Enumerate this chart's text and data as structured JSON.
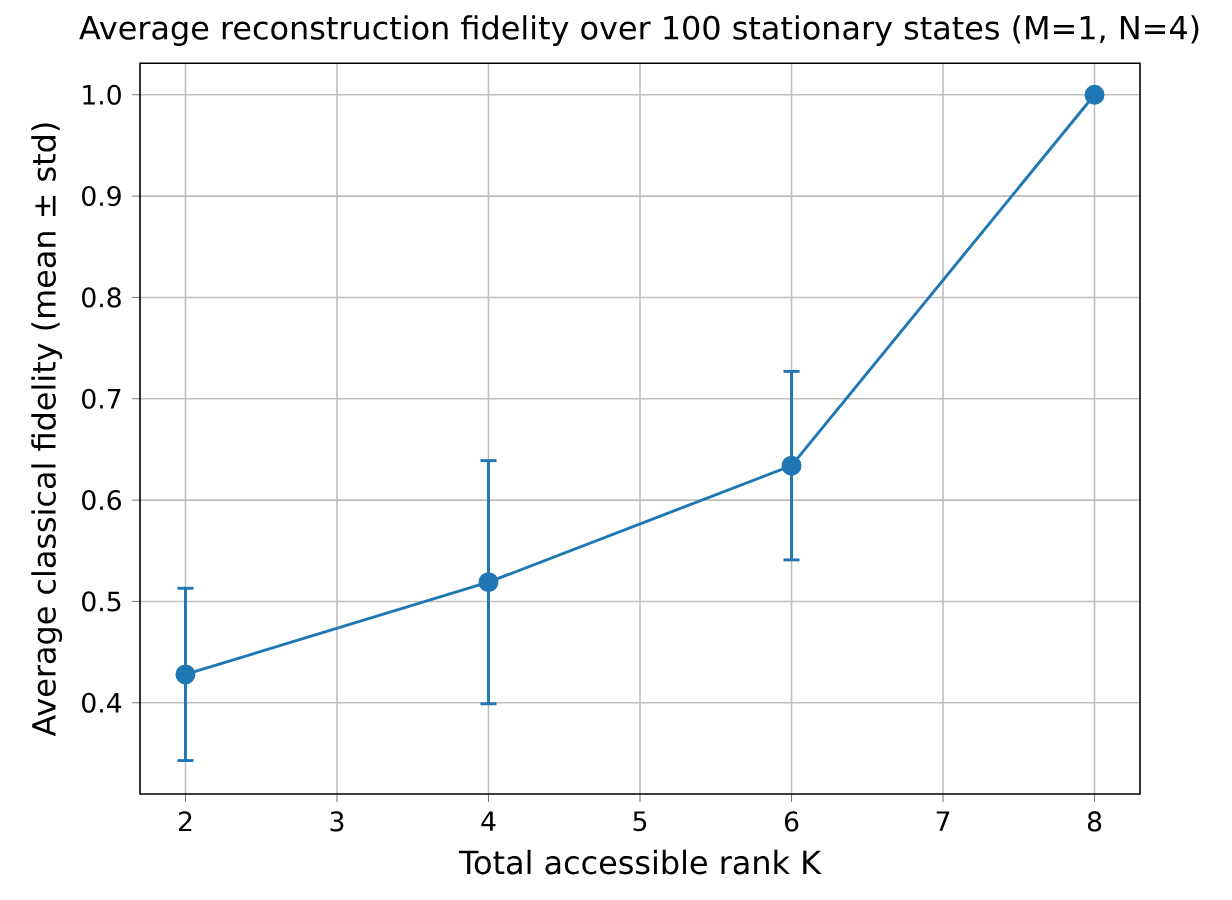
{
  "chart_data": {
    "type": "line",
    "title": "Average reconstruction fidelity over 100 stationary states (M=1, N=4)",
    "xlabel": "Total accessible rank K",
    "ylabel": "Average classical fidelity (mean ± std)",
    "x": [
      2,
      4,
      6,
      8
    ],
    "values": [
      0.428,
      0.519,
      0.634,
      1.0
    ],
    "errors": [
      0.085,
      0.12,
      0.093,
      null
    ],
    "color": "#1f77b4",
    "marker": "circle",
    "xlim": [
      1.7,
      8.3
    ],
    "ylim": [
      0.31,
      1.031
    ],
    "xticks": [
      2,
      3,
      4,
      5,
      6,
      7,
      8
    ],
    "yticks": [
      0.4,
      0.5,
      0.6,
      0.7,
      0.8,
      0.9,
      {
        "value": 1.0,
        "label": "1.0"
      }
    ],
    "grid": true
  }
}
